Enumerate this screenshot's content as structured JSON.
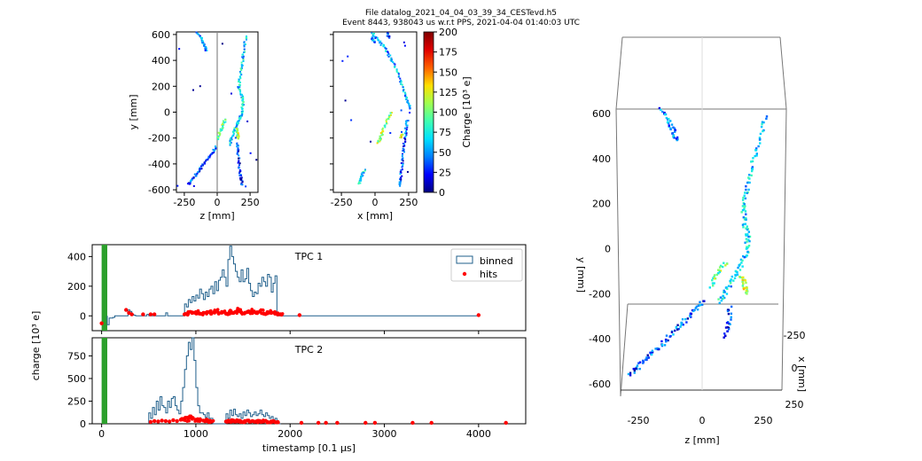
{
  "header": {
    "line1": "File datalog_2021_04_04_03_39_34_CESTevd.h5",
    "line2": "Event 8443, 938043 us w.r.t PPS, 2021-04-04 01:40:03 UTC"
  },
  "colorbar": {
    "label": "Charge [10³ e]",
    "ticks": [
      "200",
      "175",
      "150",
      "125",
      "100",
      "75",
      "50",
      "25",
      "0"
    ],
    "range": [
      0,
      200
    ],
    "colormap": [
      "#000080",
      "#0000ff",
      "#0080ff",
      "#00e0ff",
      "#40ffb0",
      "#a0ff50",
      "#ffe000",
      "#ff6000",
      "#e00000",
      "#800000"
    ]
  },
  "chart_data": [
    {
      "type": "scatter",
      "panel": "zy",
      "xlabel": "z [mm]",
      "ylabel": "y [mm]",
      "xlim": [
        -310,
        310
      ],
      "ylim": [
        -620,
        620
      ],
      "xticks": [
        "-250",
        "0",
        "250"
      ],
      "yticks": [
        "600",
        "400",
        "200",
        "0",
        "-200",
        "-400",
        "-600"
      ],
      "tracks": [
        {
          "charge": 40,
          "points": [
            [
              -150,
              610
            ],
            [
              -115,
              560
            ],
            [
              -95,
              510
            ],
            [
              -80,
              470
            ]
          ]
        },
        {
          "charge": 60,
          "points": [
            [
              220,
              590
            ],
            [
              205,
              480
            ],
            [
              190,
              380
            ],
            [
              175,
              280
            ],
            [
              165,
              200
            ],
            [
              185,
              140
            ],
            [
              195,
              80
            ],
            [
              190,
              10
            ],
            [
              175,
              -40
            ],
            [
              150,
              -90
            ],
            [
              130,
              -140
            ],
            [
              110,
              -200
            ],
            [
              100,
              -260
            ]
          ]
        },
        {
          "charge": 30,
          "points": [
            [
              -10,
              -270
            ],
            [
              -40,
              -320
            ],
            [
              -80,
              -370
            ],
            [
              -120,
              -420
            ],
            [
              -150,
              -470
            ],
            [
              -190,
              -520
            ],
            [
              -220,
              -560
            ]
          ]
        },
        {
          "charge": 90,
          "points": [
            [
              60,
              -60
            ],
            [
              40,
              -110
            ],
            [
              20,
              -160
            ],
            [
              0,
              -210
            ]
          ]
        },
        {
          "charge": 20,
          "points": [
            [
              150,
              -240
            ],
            [
              160,
              -320
            ],
            [
              170,
              -420
            ],
            [
              180,
              -500
            ],
            [
              190,
              -570
            ]
          ]
        },
        {
          "charge": 110,
          "points": [
            [
              150,
              -130
            ],
            [
              155,
              -170
            ],
            [
              160,
              -210
            ]
          ]
        }
      ]
    },
    {
      "type": "scatter",
      "panel": "xy",
      "xlabel": "x [mm]",
      "ylabel": "",
      "xlim": [
        -310,
        310
      ],
      "ylim": [
        -620,
        620
      ],
      "xticks": [
        "-250",
        "0",
        "250"
      ],
      "yticks": [],
      "tracks": [
        {
          "charge": 50,
          "points": [
            [
              -20,
              610
            ],
            [
              20,
              560
            ],
            [
              70,
              500
            ],
            [
              110,
              430
            ],
            [
              150,
              350
            ],
            [
              190,
              250
            ],
            [
              215,
              160
            ],
            [
              245,
              80
            ],
            [
              265,
              20
            ]
          ]
        },
        {
          "charge": 40,
          "points": [
            [
              -30,
              580
            ],
            [
              0,
              530
            ]
          ]
        },
        {
          "charge": 30,
          "points": [
            [
              90,
              610
            ],
            [
              110,
              570
            ]
          ]
        },
        {
          "charge": 100,
          "points": [
            [
              120,
              0
            ],
            [
              90,
              -60
            ],
            [
              60,
              -140
            ],
            [
              40,
              -200
            ],
            [
              20,
              -240
            ]
          ]
        },
        {
          "charge": 30,
          "points": [
            [
              240,
              -60
            ],
            [
              230,
              -140
            ],
            [
              220,
              -230
            ],
            [
              210,
              -320
            ],
            [
              200,
              -420
            ],
            [
              190,
              -510
            ],
            [
              180,
              -570
            ]
          ]
        },
        {
          "charge": 60,
          "points": [
            [
              -80,
              -450
            ],
            [
              -100,
              -500
            ],
            [
              -120,
              -560
            ]
          ]
        },
        {
          "charge": 120,
          "points": [
            [
              200,
              -170
            ],
            [
              190,
              -200
            ]
          ]
        }
      ]
    },
    {
      "type": "bar",
      "panel": "TPC 1",
      "title": "TPC 1",
      "xlabel": "",
      "ylabel": "",
      "xlim": [
        -100,
        4500
      ],
      "ylim": [
        -100,
        480
      ],
      "yticks": [
        "400",
        "200",
        "0"
      ],
      "legend": [
        "binned",
        "hits"
      ],
      "legend_placement": "top-right",
      "trigger": {
        "x": [
          0,
          60
        ],
        "color": "#2ca02c"
      },
      "bin_width": 20,
      "series": [
        {
          "name": "binned",
          "x": [
            60,
            80,
            100,
            120,
            140,
            160,
            180,
            200,
            220,
            240,
            260,
            280,
            300,
            320,
            340,
            360,
            380,
            400,
            420,
            440,
            460,
            480,
            500,
            520,
            540,
            560,
            580,
            600,
            620,
            640,
            660,
            680,
            700,
            720,
            740,
            760,
            780,
            800,
            820,
            840,
            860,
            880,
            900,
            920,
            940,
            960,
            980,
            1000,
            1020,
            1040,
            1060,
            1080,
            1100,
            1120,
            1140,
            1160,
            1180,
            1200,
            1220,
            1240,
            1260,
            1280,
            1300,
            1320,
            1340,
            1360,
            1380,
            1400,
            1420,
            1440,
            1460,
            1480,
            1500,
            1520,
            1540,
            1560,
            1580,
            1600,
            1620,
            1640,
            1660,
            1680,
            1700,
            1720,
            1740,
            1760,
            1780,
            1800,
            1820,
            1840,
            1860,
            1880
          ],
          "values": [
            -60,
            -15,
            -15,
            -10,
            0,
            0,
            0,
            0,
            0,
            0,
            0,
            40,
            30,
            10,
            5,
            0,
            0,
            0,
            0,
            0,
            0,
            10,
            0,
            0,
            0,
            0,
            0,
            0,
            0,
            0,
            0,
            20,
            0,
            0,
            0,
            0,
            0,
            0,
            0,
            0,
            0,
            80,
            60,
            110,
            90,
            130,
            100,
            140,
            120,
            180,
            150,
            110,
            160,
            130,
            180,
            200,
            150,
            230,
            170,
            240,
            260,
            310,
            260,
            200,
            380,
            470,
            400,
            350,
            300,
            260,
            230,
            310,
            230,
            250,
            320,
            220,
            170,
            130,
            160,
            150,
            220,
            200,
            260,
            230,
            200,
            280,
            260,
            160,
            220,
            270,
            0,
            0
          ]
        },
        {
          "name": "hits",
          "x": [
            0,
            260,
            290,
            320,
            440,
            520,
            560,
            880,
            920,
            960,
            1000,
            1040,
            1080,
            1120,
            1160,
            1200,
            1240,
            1280,
            1320,
            1360,
            1400,
            1440,
            1480,
            1520,
            1560,
            1600,
            1640,
            1680,
            1720,
            1760,
            1800,
            1840,
            1880,
            2100,
            4000
          ],
          "values": [
            -50,
            40,
            20,
            10,
            10,
            10,
            10,
            10,
            25,
            20,
            25,
            15,
            20,
            25,
            15,
            30,
            20,
            25,
            15,
            30,
            20,
            35,
            25,
            20,
            30,
            25,
            20,
            30,
            15,
            25,
            20,
            15,
            10,
            5,
            5
          ]
        }
      ]
    },
    {
      "type": "bar",
      "panel": "TPC 2",
      "title": "TPC 2",
      "xlabel": "timestamp [0.1 μs]",
      "ylabel": "charge [10³ e]",
      "xlim": [
        -100,
        4500
      ],
      "ylim": [
        0,
        950
      ],
      "xticks": [
        "0",
        "1000",
        "2000",
        "3000",
        "4000"
      ],
      "yticks": [
        "750",
        "500",
        "250",
        "0"
      ],
      "trigger": {
        "x": [
          0,
          60
        ],
        "color": "#2ca02c"
      },
      "bin_width": 20,
      "series": [
        {
          "name": "binned",
          "x": [
            500,
            520,
            540,
            560,
            580,
            600,
            620,
            640,
            660,
            680,
            700,
            720,
            740,
            760,
            780,
            800,
            820,
            840,
            860,
            880,
            900,
            920,
            940,
            960,
            980,
            1000,
            1020,
            1040,
            1060,
            1080,
            1100,
            1120,
            1140,
            1160,
            1180,
            1200,
            1220,
            1240,
            1260,
            1280,
            1300,
            1320,
            1340,
            1360,
            1380,
            1400,
            1420,
            1440,
            1460,
            1480,
            1500,
            1520,
            1540,
            1560,
            1580,
            1600,
            1620,
            1640,
            1660,
            1680,
            1700,
            1720,
            1740,
            1760,
            1780,
            1800,
            1820,
            1840,
            1860,
            1880
          ],
          "values": [
            120,
            60,
            180,
            100,
            250,
            150,
            300,
            200,
            180,
            120,
            250,
            180,
            280,
            300,
            200,
            150,
            110,
            250,
            400,
            600,
            750,
            900,
            820,
            950,
            700,
            400,
            200,
            120,
            120,
            100,
            70,
            120,
            60,
            60,
            0,
            0,
            0,
            0,
            0,
            0,
            0,
            110,
            60,
            150,
            90,
            160,
            100,
            80,
            110,
            60,
            130,
            90,
            150,
            120,
            80,
            100,
            130,
            90,
            110,
            150,
            100,
            80,
            120,
            90,
            60,
            80,
            40,
            60,
            30,
            0
          ]
        },
        {
          "name": "hits",
          "x": [
            520,
            560,
            600,
            640,
            680,
            720,
            760,
            800,
            840,
            880,
            920,
            960,
            1000,
            1040,
            1080,
            1120,
            1160,
            1320,
            1360,
            1400,
            1440,
            1480,
            1520,
            1560,
            1600,
            1640,
            1680,
            1720,
            1760,
            1800,
            1840,
            2120,
            2300,
            2380,
            2500,
            2800,
            2900,
            3300,
            3500,
            4290
          ],
          "values": [
            20,
            30,
            25,
            35,
            30,
            25,
            40,
            30,
            45,
            50,
            60,
            55,
            45,
            40,
            35,
            30,
            25,
            25,
            30,
            35,
            30,
            25,
            30,
            35,
            30,
            25,
            30,
            25,
            20,
            25,
            20,
            10,
            10,
            10,
            10,
            10,
            10,
            10,
            10,
            10
          ]
        }
      ]
    },
    {
      "type": "scatter",
      "panel": "3d",
      "xlabel": "z [mm]",
      "ylabel": "y [mm]",
      "zlabel": "x [mm]",
      "xticks": [
        "-250",
        "0",
        "250"
      ],
      "yticks": [
        "600",
        "400",
        "200",
        "0",
        "-200",
        "-400",
        "-600"
      ],
      "zticks": [
        "-250",
        "0",
        "250"
      ],
      "xlim": [
        -310,
        310
      ],
      "ylim": [
        -620,
        620
      ],
      "tracks": [
        {
          "charge": 40,
          "points": [
            [
              -160,
              620
            ],
            [
              -130,
              560
            ],
            [
              -110,
              510
            ],
            [
              -100,
              480
            ]
          ]
        },
        {
          "charge": 60,
          "points": [
            [
              230,
              590
            ],
            [
              200,
              470
            ],
            [
              180,
              360
            ],
            [
              160,
              260
            ],
            [
              145,
              180
            ],
            [
              150,
              110
            ],
            [
              165,
              50
            ],
            [
              160,
              -10
            ],
            [
              140,
              -70
            ],
            [
              110,
              -130
            ],
            [
              80,
              -190
            ],
            [
              60,
              -240
            ]
          ]
        },
        {
          "charge": 30,
          "points": [
            [
              0,
              -230
            ],
            [
              -40,
              -280
            ],
            [
              -80,
              -330
            ],
            [
              -120,
              -380
            ],
            [
              -160,
              -430
            ],
            [
              -200,
              -470
            ],
            [
              -240,
              -520
            ],
            [
              -280,
              -560
            ]
          ]
        },
        {
          "charge": 90,
          "points": [
            [
              80,
              -60
            ],
            [
              50,
              -110
            ],
            [
              20,
              -170
            ]
          ]
        },
        {
          "charge": 20,
          "points": [
            [
              100,
              -260
            ],
            [
              90,
              -330
            ],
            [
              80,
              -400
            ]
          ]
        },
        {
          "charge": 110,
          "points": [
            [
              140,
              -120
            ],
            [
              150,
              -160
            ],
            [
              160,
              -200
            ]
          ]
        }
      ]
    }
  ]
}
